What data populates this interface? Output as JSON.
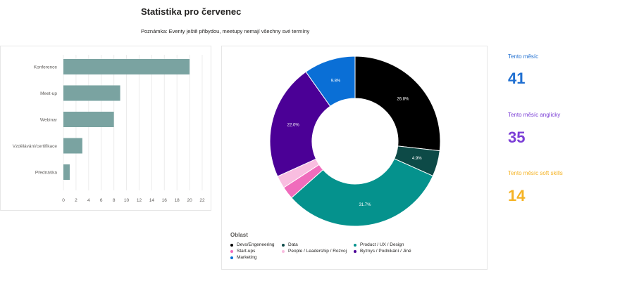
{
  "title": "Statistika pro červenec",
  "note": "Poznámka: Eventy ještě přibydou, meetupy nemají všechny své termíny",
  "chart_data": [
    {
      "type": "bar",
      "orientation": "horizontal",
      "categories": [
        "Konference",
        "Meet-up",
        "Webinar",
        "Vzdělávání/certifikace",
        "Přednáška"
      ],
      "values": [
        20,
        9,
        8,
        3,
        1
      ],
      "xlim": [
        0,
        22
      ],
      "xticks": [
        0,
        2,
        4,
        6,
        8,
        10,
        12,
        14,
        16,
        18,
        20,
        22
      ],
      "grid": true,
      "color": "#7aa3a1"
    },
    {
      "type": "pie",
      "donut": true,
      "legend_title": "Oblast",
      "legend_position": "bottom-left",
      "slices": [
        {
          "label": "Devs/Engeneering",
          "value": 26.8,
          "value_label": "26.8%",
          "color": "#000000"
        },
        {
          "label": "Data",
          "value": 4.9,
          "value_label": "4.9%",
          "color": "#0d4a47"
        },
        {
          "label": "Product / UX / Design",
          "value": 31.7,
          "value_label": "31.7%",
          "color": "#05928d"
        },
        {
          "label": "Start-ups",
          "value": 2.4,
          "value_label": "",
          "color": "#f06cbc"
        },
        {
          "label": "People / Leadership / Rozvoj",
          "value": 2.4,
          "value_label": "",
          "color": "#f9bde0"
        },
        {
          "label": "Byznys / Podnikání / Jiné",
          "value": 22.0,
          "value_label": "22.0%",
          "color": "#4b0096"
        },
        {
          "label": "Marketing",
          "value": 9.8,
          "value_label": "9.8%",
          "color": "#0a6fd6"
        }
      ]
    }
  ],
  "kpis": [
    {
      "label": "Tento měsíc",
      "value": "41",
      "color": "#1f6fd1"
    },
    {
      "label": "Tento měsíc anglicky",
      "value": "35",
      "color": "#7b3ed6"
    },
    {
      "label": "Tento měsíc soft skills",
      "value": "14",
      "color": "#f5b324"
    }
  ]
}
